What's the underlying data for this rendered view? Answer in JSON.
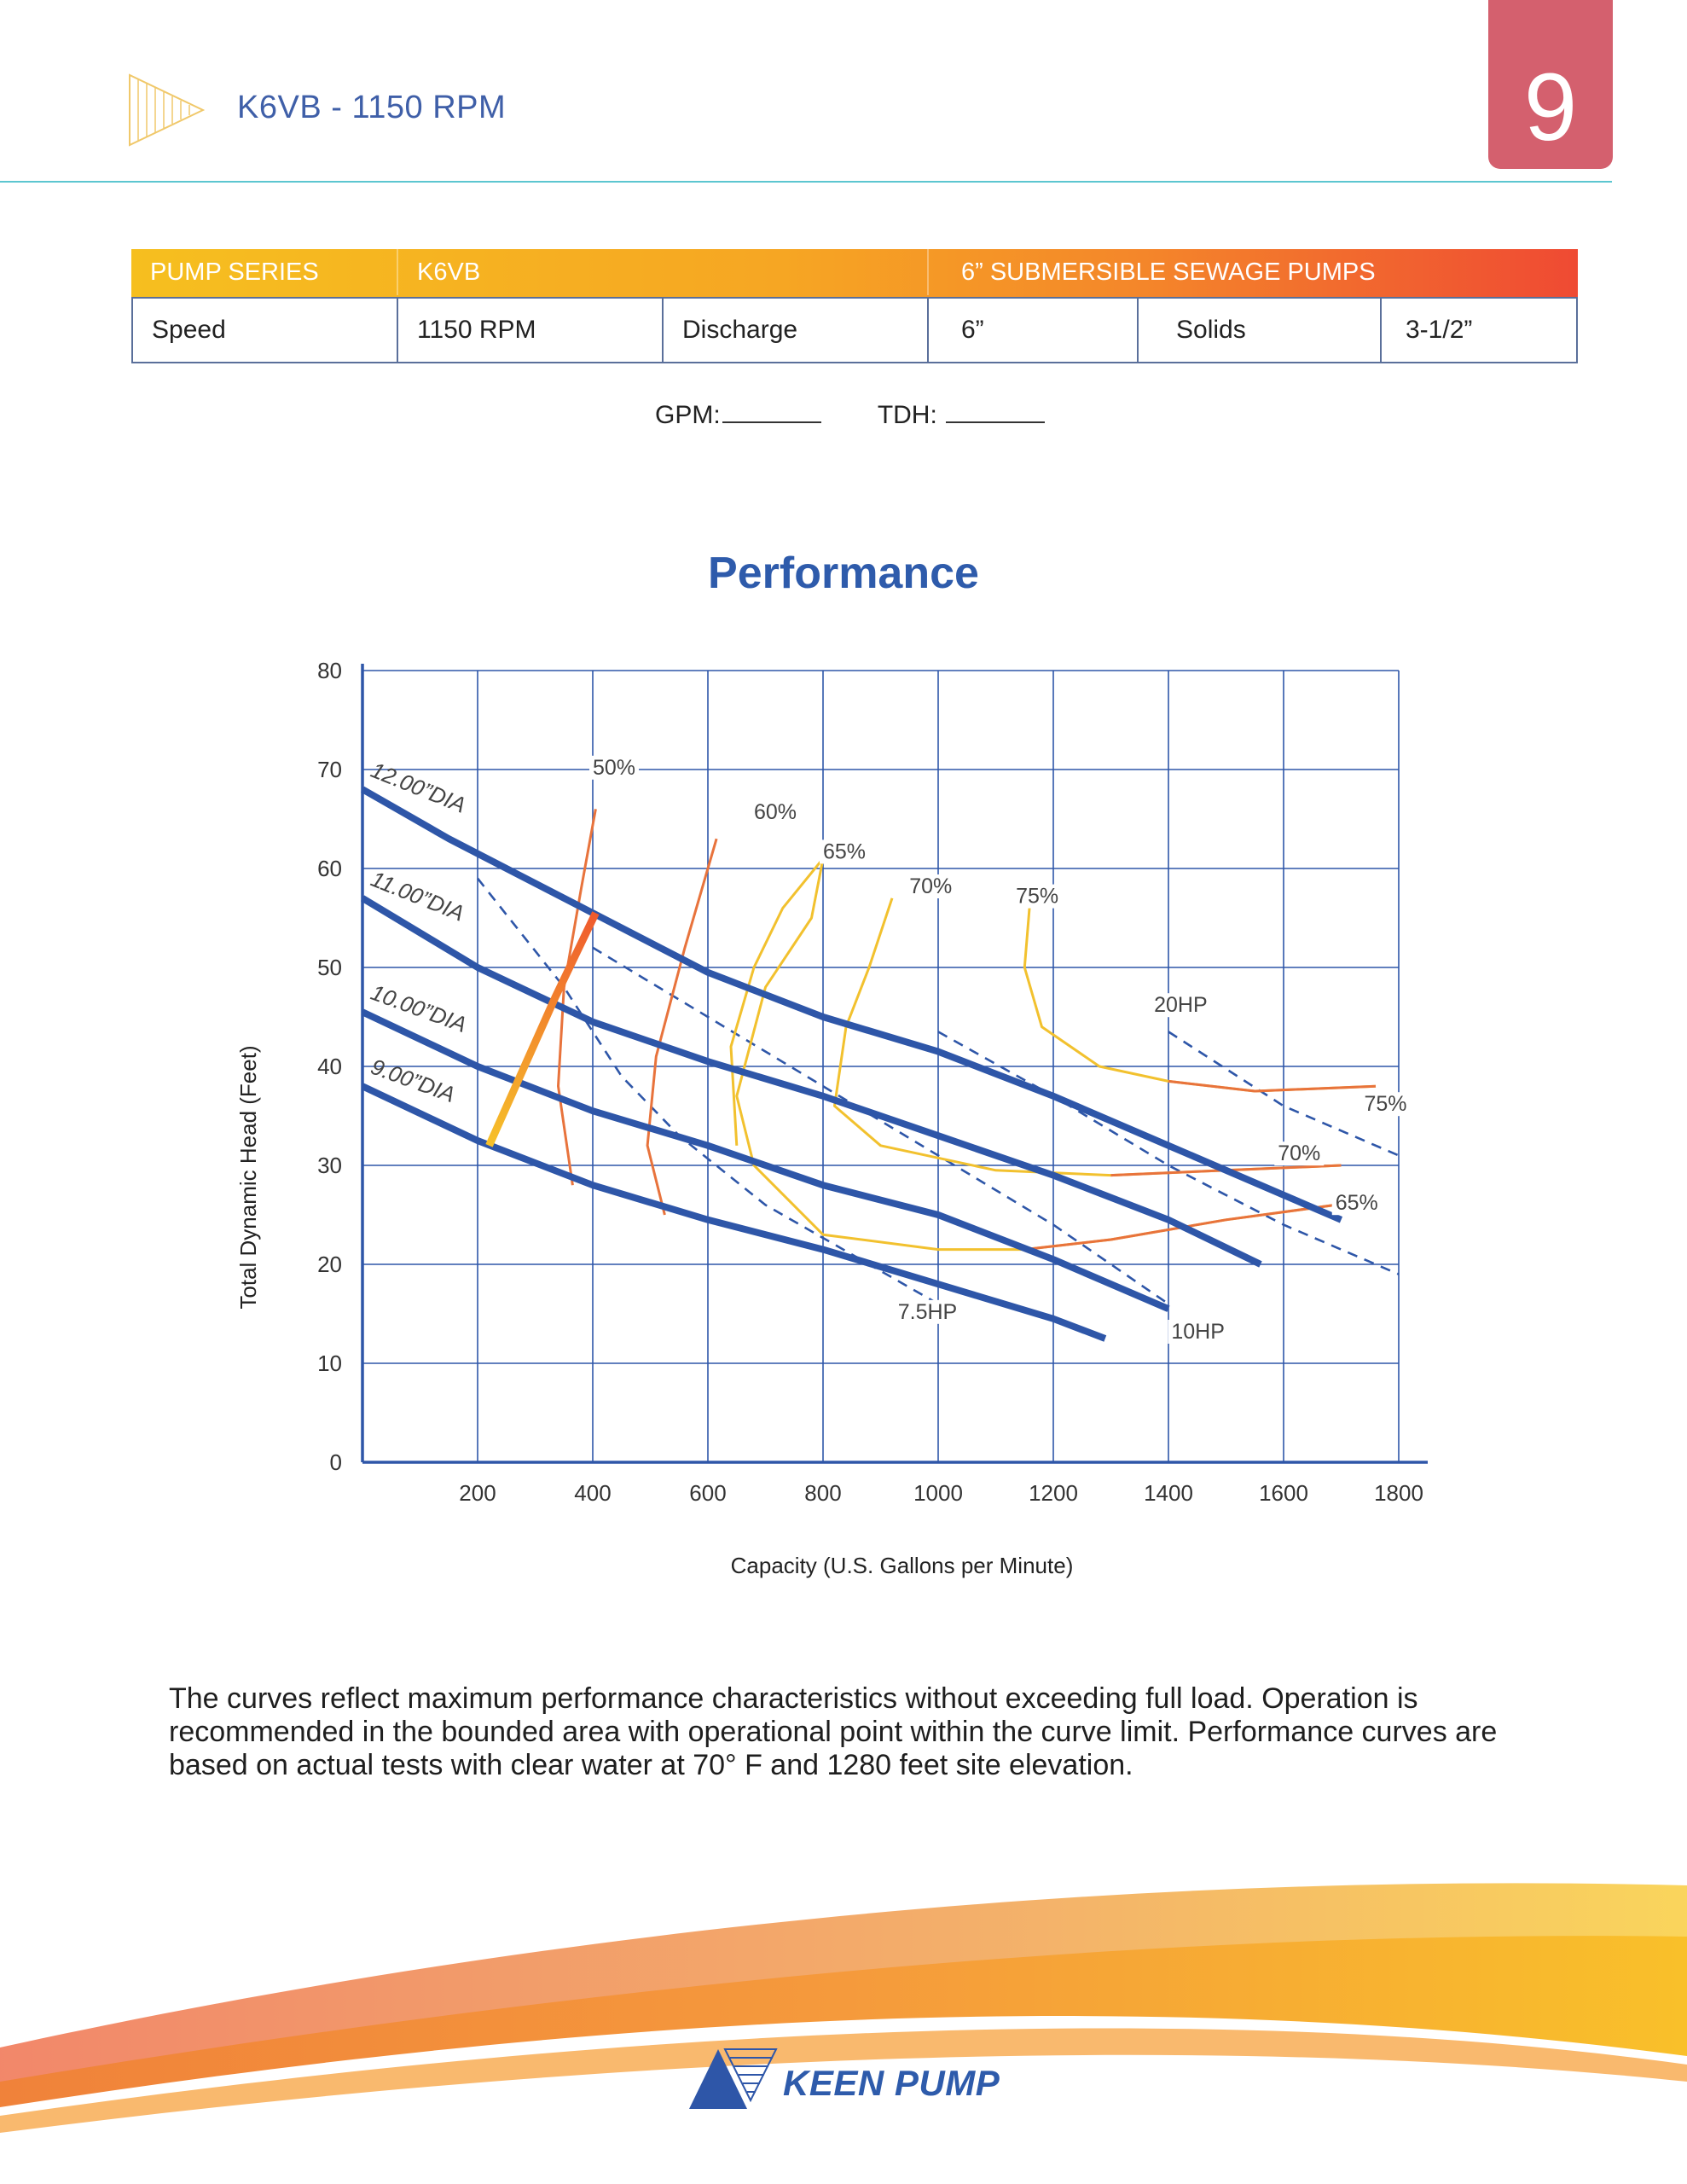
{
  "header": {
    "title": "K6VB - 1150 RPM",
    "page_number": "9"
  },
  "spec_table": {
    "header": [
      "PUMP SERIES",
      "K6VB",
      "6” SUBMERSIBLE SEWAGE PUMPS"
    ],
    "row": [
      "Speed",
      "1150 RPM",
      "Discharge",
      "6”",
      "Solids",
      "3-1/2”"
    ]
  },
  "duty_point": {
    "gpm_label": "GPM:",
    "tdh_label": "TDH:"
  },
  "chart_data": {
    "type": "line",
    "title": "Performance",
    "xlabel": "Capacity (U.S. Gallons per Minute)",
    "ylabel": "Total Dynamic Head (Feet)",
    "xlim": [
      0,
      1800
    ],
    "ylim": [
      0,
      80
    ],
    "xticks": [
      "200",
      "400",
      "600",
      "800",
      "1000",
      "1200",
      "1400",
      "1600",
      "1800"
    ],
    "yticks": [
      "0",
      "10",
      "20",
      "30",
      "40",
      "50",
      "60",
      "70",
      "80"
    ],
    "grid": true,
    "legend": "none",
    "impeller_curves": [
      {
        "name": "12.00”DIA",
        "points": [
          [
            0,
            68
          ],
          [
            150,
            63
          ],
          [
            400,
            55.5
          ],
          [
            600,
            49.5
          ],
          [
            800,
            45
          ],
          [
            1000,
            41.5
          ],
          [
            1200,
            37
          ],
          [
            1400,
            32
          ],
          [
            1700,
            24.5
          ]
        ]
      },
      {
        "name": "11.00”DIA",
        "points": [
          [
            0,
            57
          ],
          [
            200,
            50
          ],
          [
            400,
            44.5
          ],
          [
            600,
            40.5
          ],
          [
            800,
            37
          ],
          [
            1000,
            33
          ],
          [
            1200,
            29
          ],
          [
            1400,
            24.5
          ],
          [
            1560,
            20
          ]
        ]
      },
      {
        "name": "10.00”DIA",
        "points": [
          [
            0,
            45.5
          ],
          [
            200,
            40
          ],
          [
            400,
            35.5
          ],
          [
            600,
            32
          ],
          [
            800,
            28
          ],
          [
            1000,
            25
          ],
          [
            1200,
            20.5
          ],
          [
            1400,
            15.5
          ]
        ]
      },
      {
        "name": "9.00”DIA",
        "points": [
          [
            0,
            38
          ],
          [
            200,
            32.5
          ],
          [
            400,
            28
          ],
          [
            600,
            24.5
          ],
          [
            800,
            21.5
          ],
          [
            1000,
            18
          ],
          [
            1200,
            14.5
          ],
          [
            1290,
            12.5
          ]
        ]
      }
    ],
    "trim_range_line": {
      "points": [
        [
          220,
          32
        ],
        [
          335,
          47
        ],
        [
          405,
          55.5
        ]
      ]
    },
    "efficiency_curves": [
      {
        "name": "50%",
        "points": [
          [
            365,
            28
          ],
          [
            340,
            38
          ],
          [
            350,
            48
          ],
          [
            380,
            58
          ],
          [
            405,
            66
          ]
        ]
      },
      {
        "name": "60%",
        "points": [
          [
            525,
            25
          ],
          [
            495,
            32
          ],
          [
            510,
            41
          ],
          [
            560,
            52
          ],
          [
            615,
            63
          ]
        ]
      },
      {
        "name": "65%",
        "points": [
          [
            650,
            32
          ],
          [
            640,
            42
          ],
          [
            680,
            50
          ],
          [
            730,
            56
          ],
          [
            800,
            61
          ],
          [
            780,
            55
          ],
          [
            700,
            48
          ],
          [
            650,
            37
          ],
          [
            680,
            30
          ],
          [
            800,
            23
          ],
          [
            1000,
            21.5
          ],
          [
            1150,
            21.5
          ],
          [
            1300,
            22.5
          ],
          [
            1500,
            24.5
          ],
          [
            1690,
            26
          ]
        ]
      },
      {
        "name": "70%",
        "points": [
          [
            920,
            57
          ],
          [
            880,
            50
          ],
          [
            840,
            44
          ],
          [
            820,
            36
          ],
          [
            900,
            32
          ],
          [
            1100,
            29.5
          ],
          [
            1300,
            29
          ],
          [
            1500,
            29.5
          ],
          [
            1700,
            30
          ]
        ]
      },
      {
        "name": "75%",
        "points": [
          [
            1160,
            57
          ],
          [
            1150,
            50
          ],
          [
            1180,
            44
          ],
          [
            1280,
            40
          ],
          [
            1400,
            38.5
          ],
          [
            1550,
            37.5
          ],
          [
            1760,
            38
          ]
        ]
      }
    ],
    "efficiency_labels": [
      "50%",
      "60%",
      "65%",
      "70%",
      "75%",
      "75%",
      "70%",
      "65%"
    ],
    "horsepower_lines": [
      {
        "name": "7.5HP",
        "points": [
          [
            200,
            59
          ],
          [
            350,
            48
          ],
          [
            450,
            39
          ],
          [
            550,
            33
          ],
          [
            700,
            26
          ],
          [
            850,
            21
          ],
          [
            1000,
            16
          ]
        ]
      },
      {
        "name": "10HP",
        "points": [
          [
            400,
            52
          ],
          [
            600,
            45
          ],
          [
            800,
            38
          ],
          [
            1000,
            31
          ],
          [
            1200,
            24
          ],
          [
            1400,
            16
          ]
        ]
      },
      {
        "name": "20HP",
        "points": [
          [
            1000,
            43.5
          ],
          [
            1200,
            37
          ],
          [
            1400,
            30
          ],
          [
            1600,
            24
          ],
          [
            1800,
            19
          ]
        ]
      }
    ],
    "hp_side_lines": [
      {
        "points": [
          [
            1400,
            43.5
          ],
          [
            1600,
            36
          ],
          [
            1800,
            31
          ]
        ]
      }
    ]
  },
  "caption": "The curves reflect maximum performance characteristics without exceeding full load. Operation is recommended in the bounded area with operational point within the curve limit. Performance curves are based on actual tests with clear water at 70° F and 1280 feet site elevation.",
  "footer": {
    "brand": "KEEN PUMP"
  },
  "colors": {
    "impeller": "#2e56a8",
    "grid": "#2e56a8",
    "eff_yellow": "#f2c12e",
    "eff_orange": "#e8733c",
    "hp_dash": "#2e56a8",
    "accent": "#d4606e"
  }
}
